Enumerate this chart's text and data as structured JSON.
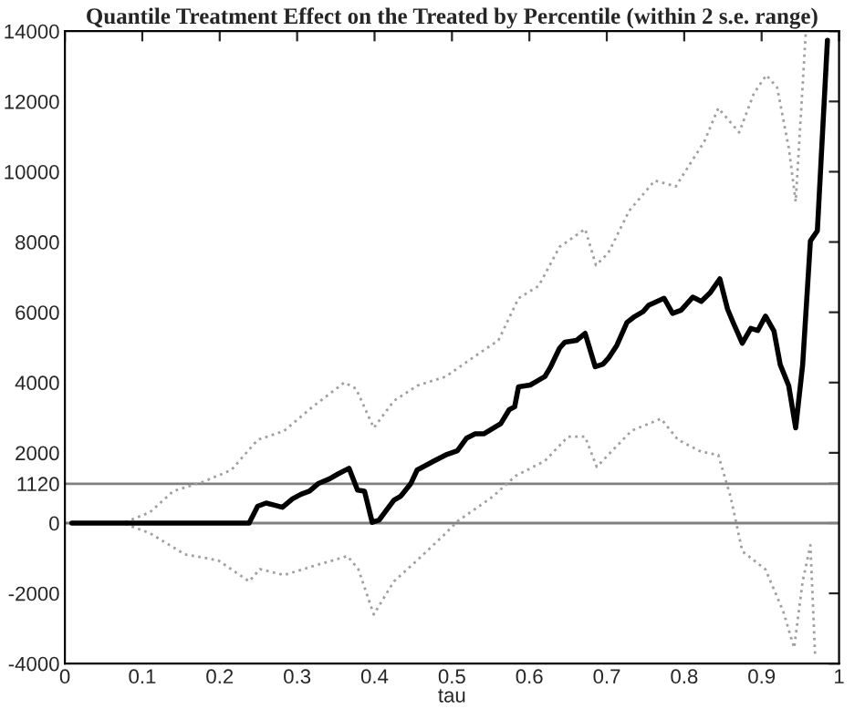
{
  "chart_data": {
    "type": "line",
    "title": "Quantile Treatment Effect on the Treated by Percentile (within 2 s.e. range)",
    "xlabel": "tau",
    "xlim": [
      0,
      1
    ],
    "xticks": [
      0,
      0.1,
      0.2,
      0.3,
      0.4,
      0.5,
      0.6,
      0.7,
      0.8,
      0.9,
      1
    ],
    "ylim": [
      -4000,
      14000
    ],
    "yticks": [
      -4000,
      -2000,
      0,
      1120,
      2000,
      4000,
      6000,
      8000,
      10000,
      12000,
      14000
    ],
    "grid": false,
    "marker": "none",
    "ref_lines": [
      {
        "axis": "y",
        "value": 0,
        "color": "#808080"
      },
      {
        "axis": "y",
        "value": 1120,
        "color": "#808080"
      }
    ],
    "series": [
      {
        "color": "#000000",
        "line_style": "solid",
        "x": [
          0.009,
          0.238,
          0.249,
          0.26,
          0.271,
          0.281,
          0.294,
          0.305,
          0.316,
          0.327,
          0.342,
          0.353,
          0.367,
          0.378,
          0.387,
          0.397,
          0.406,
          0.425,
          0.434,
          0.447,
          0.455,
          0.477,
          0.492,
          0.507,
          0.519,
          0.53,
          0.541,
          0.563,
          0.574,
          0.581,
          0.586,
          0.601,
          0.609,
          0.62,
          0.627,
          0.639,
          0.646,
          0.661,
          0.672,
          0.685,
          0.695,
          0.702,
          0.713,
          0.726,
          0.736,
          0.747,
          0.754,
          0.774,
          0.785,
          0.796,
          0.811,
          0.822,
          0.834,
          0.846,
          0.856,
          0.863,
          0.875,
          0.886,
          0.895,
          0.905,
          0.916,
          0.924,
          0.935,
          0.944,
          0.953,
          0.963,
          0.972,
          0.985
        ],
        "values": [
          0,
          0,
          480,
          570,
          510,
          450,
          690,
          820,
          910,
          1120,
          1260,
          1400,
          1560,
          940,
          910,
          20,
          90,
          650,
          770,
          1130,
          1510,
          1770,
          1940,
          2060,
          2420,
          2540,
          2540,
          2830,
          3230,
          3310,
          3880,
          3930,
          4030,
          4170,
          4430,
          4980,
          5150,
          5200,
          5400,
          4450,
          4520,
          4690,
          5060,
          5710,
          5880,
          6020,
          6200,
          6400,
          5970,
          6060,
          6430,
          6310,
          6570,
          6950,
          6090,
          5720,
          5120,
          5540,
          5480,
          5890,
          5460,
          4510,
          3910,
          2710,
          4510,
          8030,
          8320,
          13740
        ]
      },
      {
        "color": "#a0a0a0",
        "line_style": "dotted",
        "x": [
          0.009,
          0.075,
          0.11,
          0.14,
          0.178,
          0.215,
          0.249,
          0.283,
          0.32,
          0.361,
          0.376,
          0.399,
          0.425,
          0.455,
          0.492,
          0.537,
          0.56,
          0.586,
          0.612,
          0.639,
          0.672,
          0.686,
          0.702,
          0.729,
          0.762,
          0.789,
          0.826,
          0.844,
          0.871,
          0.89,
          0.906,
          0.92,
          0.935,
          0.944,
          0.957
        ],
        "values": [
          0,
          0,
          310,
          910,
          1170,
          1510,
          2370,
          2620,
          3310,
          4000,
          3830,
          2710,
          3480,
          3910,
          4170,
          4860,
          5200,
          6400,
          6750,
          7860,
          8370,
          7340,
          7690,
          8890,
          9750,
          9580,
          10860,
          11810,
          11120,
          12230,
          12750,
          12400,
          10690,
          9150,
          13950
        ]
      },
      {
        "color": "#a0a0a0",
        "line_style": "dotted",
        "x": [
          0.009,
          0.075,
          0.11,
          0.155,
          0.198,
          0.238,
          0.252,
          0.283,
          0.32,
          0.365,
          0.379,
          0.399,
          0.425,
          0.455,
          0.492,
          0.507,
          0.552,
          0.582,
          0.62,
          0.65,
          0.672,
          0.687,
          0.732,
          0.77,
          0.792,
          0.822,
          0.844,
          0.86,
          0.875,
          0.905,
          0.928,
          0.942,
          0.953,
          0.963,
          0.969
        ],
        "values": [
          0,
          0,
          -290,
          -890,
          -1060,
          -1660,
          -1310,
          -1480,
          -1230,
          -940,
          -1310,
          -2600,
          -1660,
          -1060,
          -290,
          50,
          740,
          1340,
          1770,
          2460,
          2460,
          1600,
          2630,
          2970,
          2370,
          2030,
          1940,
          740,
          -800,
          -1320,
          -2520,
          -3550,
          -1660,
          -630,
          -3720
        ]
      }
    ]
  }
}
